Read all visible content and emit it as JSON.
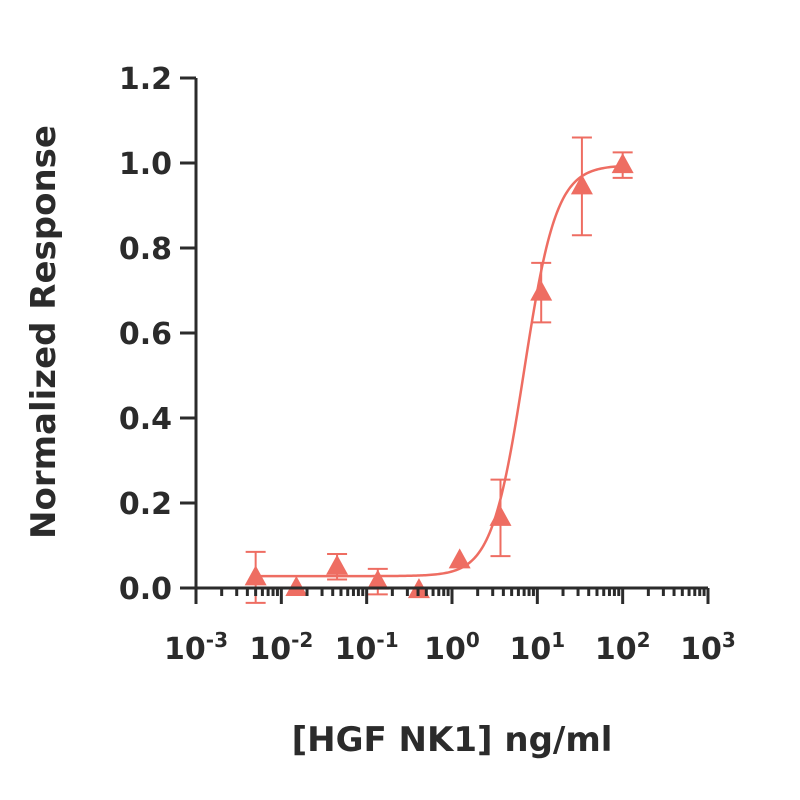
{
  "chart_data": {
    "type": "scatter",
    "title": "",
    "xlabel": "[HGF NK1] ng/ml",
    "ylabel": "Normalized Response",
    "x_scale": "log",
    "xlim": [
      0.001,
      1000
    ],
    "ylim": [
      0,
      1.2
    ],
    "x_ticks": [
      {
        "value": 0.001,
        "base": "10",
        "exp": "-3"
      },
      {
        "value": 0.01,
        "base": "10",
        "exp": "-2"
      },
      {
        "value": 0.1,
        "base": "10",
        "exp": "-1"
      },
      {
        "value": 1,
        "base": "10",
        "exp": "0"
      },
      {
        "value": 10,
        "base": "10",
        "exp": "1"
      },
      {
        "value": 100,
        "base": "10",
        "exp": "2"
      },
      {
        "value": 1000,
        "base": "10",
        "exp": "3"
      }
    ],
    "y_ticks": [
      {
        "value": 0.0,
        "label": "0.0"
      },
      {
        "value": 0.2,
        "label": "0.2"
      },
      {
        "value": 0.4,
        "label": "0.4"
      },
      {
        "value": 0.6,
        "label": "0.6"
      },
      {
        "value": 0.8,
        "label": "0.8"
      },
      {
        "value": 1.0,
        "label": "1.0"
      },
      {
        "value": 1.2,
        "label": "1.2"
      }
    ],
    "grid": false,
    "series": [
      {
        "marker": "triangle",
        "color": "#ee6d62",
        "points": [
          {
            "x": 0.005,
            "y": 0.025,
            "err": 0.06
          },
          {
            "x": 0.015,
            "y": 0.0,
            "err": 0
          },
          {
            "x": 0.045,
            "y": 0.05,
            "err": 0.03
          },
          {
            "x": 0.135,
            "y": 0.015,
            "err": 0.03
          },
          {
            "x": 0.41,
            "y": -0.005,
            "err": 0
          },
          {
            "x": 1.23,
            "y": 0.065,
            "err": 0
          },
          {
            "x": 3.7,
            "y": 0.165,
            "err": 0.09
          },
          {
            "x": 11.1,
            "y": 0.695,
            "err": 0.07
          },
          {
            "x": 33.3,
            "y": 0.945,
            "err": 0.115
          },
          {
            "x": 100,
            "y": 0.995,
            "err": 0.03
          }
        ],
        "fit": {
          "model": "4PL",
          "bottom": 0.028,
          "top": 0.995,
          "ec50": 7.0,
          "hill": 2.3
        }
      }
    ]
  }
}
